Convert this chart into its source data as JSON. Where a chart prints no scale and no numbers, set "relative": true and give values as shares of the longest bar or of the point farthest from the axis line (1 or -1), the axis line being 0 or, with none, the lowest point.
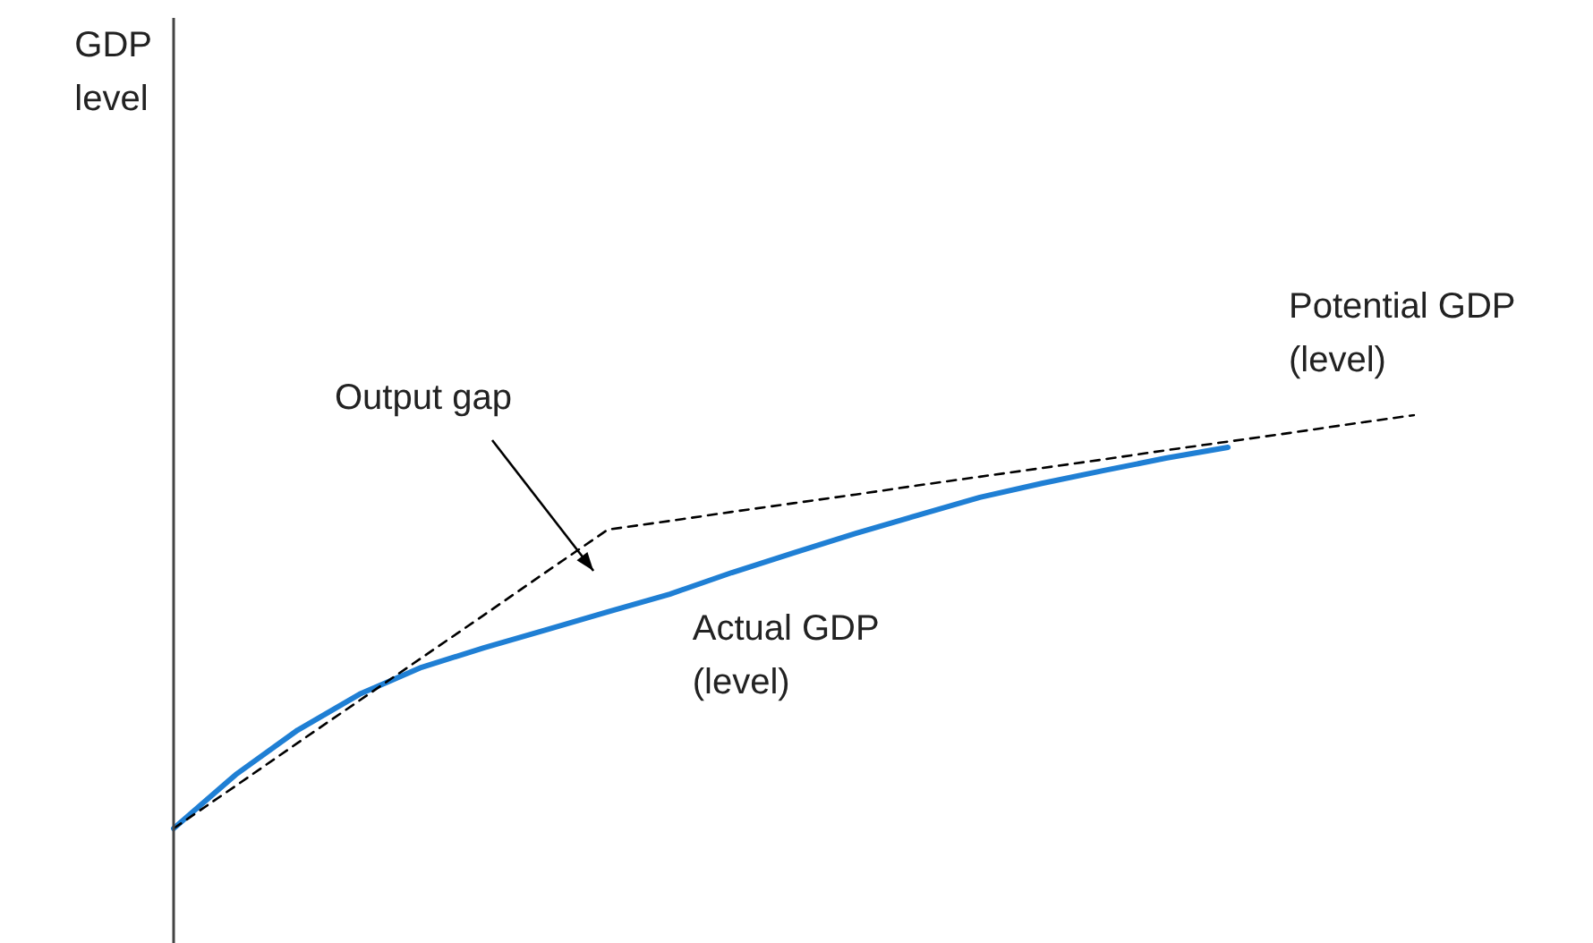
{
  "chart_data": {
    "type": "line",
    "relative": true,
    "annotations": [
      "GDP level",
      "Output gap"
    ],
    "legend": false,
    "marker": "none",
    "categories": [
      null,
      null,
      null,
      null,
      null,
      null,
      null,
      null,
      null,
      null,
      null,
      null,
      null,
      null,
      null,
      null,
      null,
      null,
      null,
      null,
      null
    ],
    "series": [
      {
        "name": "Potential GDP (level)",
        "color": "#000000",
        "line_style": "dashed",
        "values": [
          0,
          0.103,
          0.207,
          0.31,
          0.413,
          0.516,
          0.62,
          0.723,
          0.744,
          0.766,
          0.787,
          0.808,
          0.83,
          0.851,
          0.872,
          0.893,
          0.915,
          0.936,
          0.957,
          0.979,
          1
        ]
      },
      {
        "name": "Actual GDP (level)",
        "color": "#1f7fd4",
        "line_style": "solid",
        "values": [
          0,
          0.13,
          0.238,
          0.325,
          0.39,
          0.437,
          0.48,
          0.524,
          0.567,
          0.619,
          0.667,
          0.714,
          0.758,
          0.801,
          0.835,
          0.866,
          0.896,
          0.922,
          null,
          null,
          null
        ]
      }
    ]
  }
}
